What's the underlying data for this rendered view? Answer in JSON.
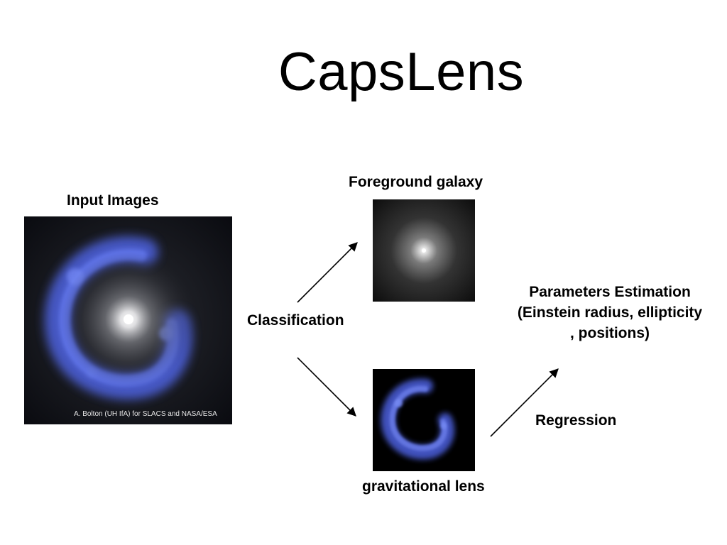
{
  "title": "CapsLens",
  "input": {
    "label": "Input Images",
    "credit": "A. Bolton (UH IfA) for SLACS and NASA/ESA"
  },
  "classification_label": "Classification",
  "foreground": {
    "label": "Foreground galaxy"
  },
  "lens": {
    "label": "gravitational lens"
  },
  "regression_label": "Regression",
  "parameters": {
    "line1": "Parameters Estimation",
    "line2": "(Einstein radius, ellipticity",
    "line3": ", positions)"
  },
  "colors": {
    "arc_blue": "#5a6ee0",
    "panel_bg": "#000000",
    "text": "#000000"
  }
}
